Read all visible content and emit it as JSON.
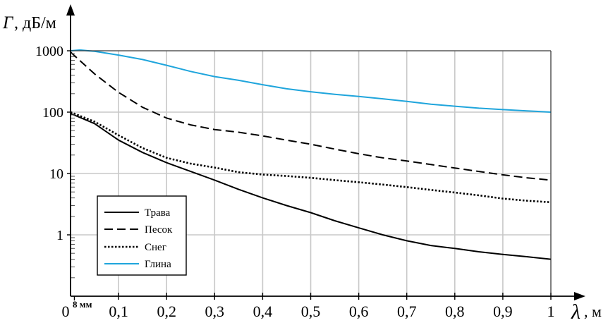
{
  "chart_data": {
    "type": "line",
    "ylabel_sym": "Γ",
    "ylabel_unit": ", дБ/м",
    "xlabel_sym": "λ",
    "xlabel_unit": ", м",
    "y_scale": "log",
    "ylim": [
      0.1,
      1000
    ],
    "xlim": [
      0,
      1
    ],
    "x_ticks": [
      "0",
      "0,1",
      "0,2",
      "0,3",
      "0,4",
      "0,5",
      "0,6",
      "0,7",
      "0,8",
      "0,9",
      "1"
    ],
    "y_ticks": [
      "1000",
      "100",
      "10",
      "1"
    ],
    "x_marker": {
      "label": "8 мм",
      "value": 0.008
    },
    "grid": true,
    "legend_position": "bottom-left",
    "series": [
      {
        "name": "Трава",
        "color": "#000000",
        "style": "solid",
        "points": [
          [
            0.0,
            95
          ],
          [
            0.05,
            65
          ],
          [
            0.1,
            35
          ],
          [
            0.15,
            22
          ],
          [
            0.2,
            15
          ],
          [
            0.25,
            10.8
          ],
          [
            0.3,
            7.8
          ],
          [
            0.35,
            5.5
          ],
          [
            0.4,
            4.0
          ],
          [
            0.45,
            3.0
          ],
          [
            0.5,
            2.3
          ],
          [
            0.55,
            1.7
          ],
          [
            0.6,
            1.3
          ],
          [
            0.65,
            1.0
          ],
          [
            0.7,
            0.8
          ],
          [
            0.75,
            0.67
          ],
          [
            0.8,
            0.6
          ],
          [
            0.85,
            0.53
          ],
          [
            0.9,
            0.48
          ],
          [
            0.95,
            0.44
          ],
          [
            1.0,
            0.4
          ]
        ]
      },
      {
        "name": "Песок",
        "color": "#000000",
        "style": "dashed",
        "points": [
          [
            0.0,
            950
          ],
          [
            0.05,
            420
          ],
          [
            0.1,
            210
          ],
          [
            0.15,
            120
          ],
          [
            0.2,
            80
          ],
          [
            0.25,
            62
          ],
          [
            0.3,
            52
          ],
          [
            0.35,
            47
          ],
          [
            0.4,
            41
          ],
          [
            0.45,
            35
          ],
          [
            0.5,
            30
          ],
          [
            0.55,
            25
          ],
          [
            0.6,
            21
          ],
          [
            0.65,
            18
          ],
          [
            0.7,
            16
          ],
          [
            0.75,
            14
          ],
          [
            0.8,
            12.3
          ],
          [
            0.85,
            10.8
          ],
          [
            0.9,
            9.5
          ],
          [
            0.95,
            8.5
          ],
          [
            1.0,
            7.8
          ]
        ]
      },
      {
        "name": "Снег",
        "color": "#000000",
        "style": "dotted",
        "points": [
          [
            0.0,
            100
          ],
          [
            0.05,
            70
          ],
          [
            0.1,
            42
          ],
          [
            0.15,
            26
          ],
          [
            0.2,
            18
          ],
          [
            0.25,
            14.5
          ],
          [
            0.3,
            12.5
          ],
          [
            0.35,
            10.5
          ],
          [
            0.4,
            9.6
          ],
          [
            0.45,
            9.1
          ],
          [
            0.5,
            8.5
          ],
          [
            0.55,
            7.8
          ],
          [
            0.6,
            7.2
          ],
          [
            0.65,
            6.6
          ],
          [
            0.7,
            6.0
          ],
          [
            0.75,
            5.4
          ],
          [
            0.8,
            4.9
          ],
          [
            0.85,
            4.4
          ],
          [
            0.9,
            3.9
          ],
          [
            0.95,
            3.6
          ],
          [
            1.0,
            3.4
          ]
        ]
      },
      {
        "name": "Глина",
        "color": "#1fa5dc",
        "style": "solid",
        "points": [
          [
            0.0,
            1000
          ],
          [
            0.02,
            1030
          ],
          [
            0.05,
            980
          ],
          [
            0.1,
            850
          ],
          [
            0.15,
            720
          ],
          [
            0.2,
            580
          ],
          [
            0.25,
            460
          ],
          [
            0.3,
            380
          ],
          [
            0.35,
            330
          ],
          [
            0.4,
            280
          ],
          [
            0.45,
            240
          ],
          [
            0.5,
            215
          ],
          [
            0.55,
            195
          ],
          [
            0.6,
            180
          ],
          [
            0.65,
            165
          ],
          [
            0.7,
            150
          ],
          [
            0.75,
            135
          ],
          [
            0.8,
            125
          ],
          [
            0.85,
            116
          ],
          [
            0.9,
            110
          ],
          [
            0.95,
            105
          ],
          [
            1.0,
            100
          ]
        ]
      }
    ]
  }
}
